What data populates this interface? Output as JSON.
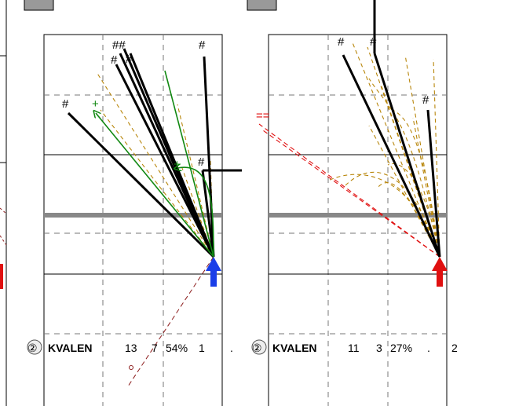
{
  "colors": {
    "frame": "#000000",
    "grid": "#777777",
    "goal_bar": "#888888",
    "tab": "#999999",
    "shot_line": "#000000",
    "pass_dash": "#b8860b",
    "green": "#118811",
    "red": "#e01010",
    "blue": "#1a3ee8",
    "dark_red": "#8b1a1a"
  },
  "icons": {
    "left_arrow": "up-arrow-blue",
    "right_arrow": "up-arrow-red",
    "circle_number": "circled-digit-icon"
  },
  "left_panel": {
    "circle_number": "②",
    "team": "KVALEN",
    "stat_a": "13",
    "stat_b": "7",
    "percent": "54%",
    "stat_c": "1",
    "stat_d": ".",
    "hash_marks": [
      "##",
      "#",
      "#",
      "#",
      "#",
      "#",
      "#"
    ],
    "plus_marks": [
      "+",
      "+"
    ]
  },
  "right_panel": {
    "circle_number": "②",
    "team": "KVALEN",
    "stat_a": "11",
    "stat_b": "3",
    "percent": "27%",
    "stat_c": ".",
    "stat_d": "2",
    "hash_marks": [
      "#",
      "#",
      "#"
    ],
    "eq_mark": "=="
  }
}
